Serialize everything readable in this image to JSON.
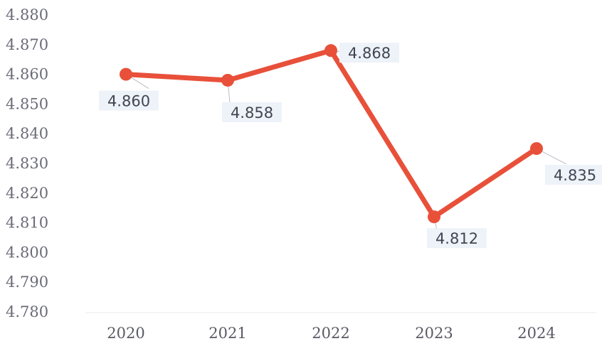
{
  "chart_data": {
    "type": "line",
    "categories": [
      "2020",
      "2021",
      "2022",
      "2023",
      "2024"
    ],
    "series": [
      {
        "values": [
          4.86,
          4.858,
          4.868,
          4.812,
          4.835
        ]
      }
    ],
    "data_labels": [
      "4.860",
      "4.858",
      "4.868",
      "4.812",
      "4.835"
    ],
    "yticks": [
      "4.880",
      "4.870",
      "4.860",
      "4.850",
      "4.840",
      "4.830",
      "4.820",
      "4.810",
      "4.800",
      "4.790",
      "4.780"
    ],
    "ylim": [
      4.78,
      4.88
    ],
    "grid": false,
    "legend": "none",
    "colors": {
      "series": "#e8503a",
      "marker": "#e8503a",
      "label_background": "#eef2f9"
    }
  }
}
